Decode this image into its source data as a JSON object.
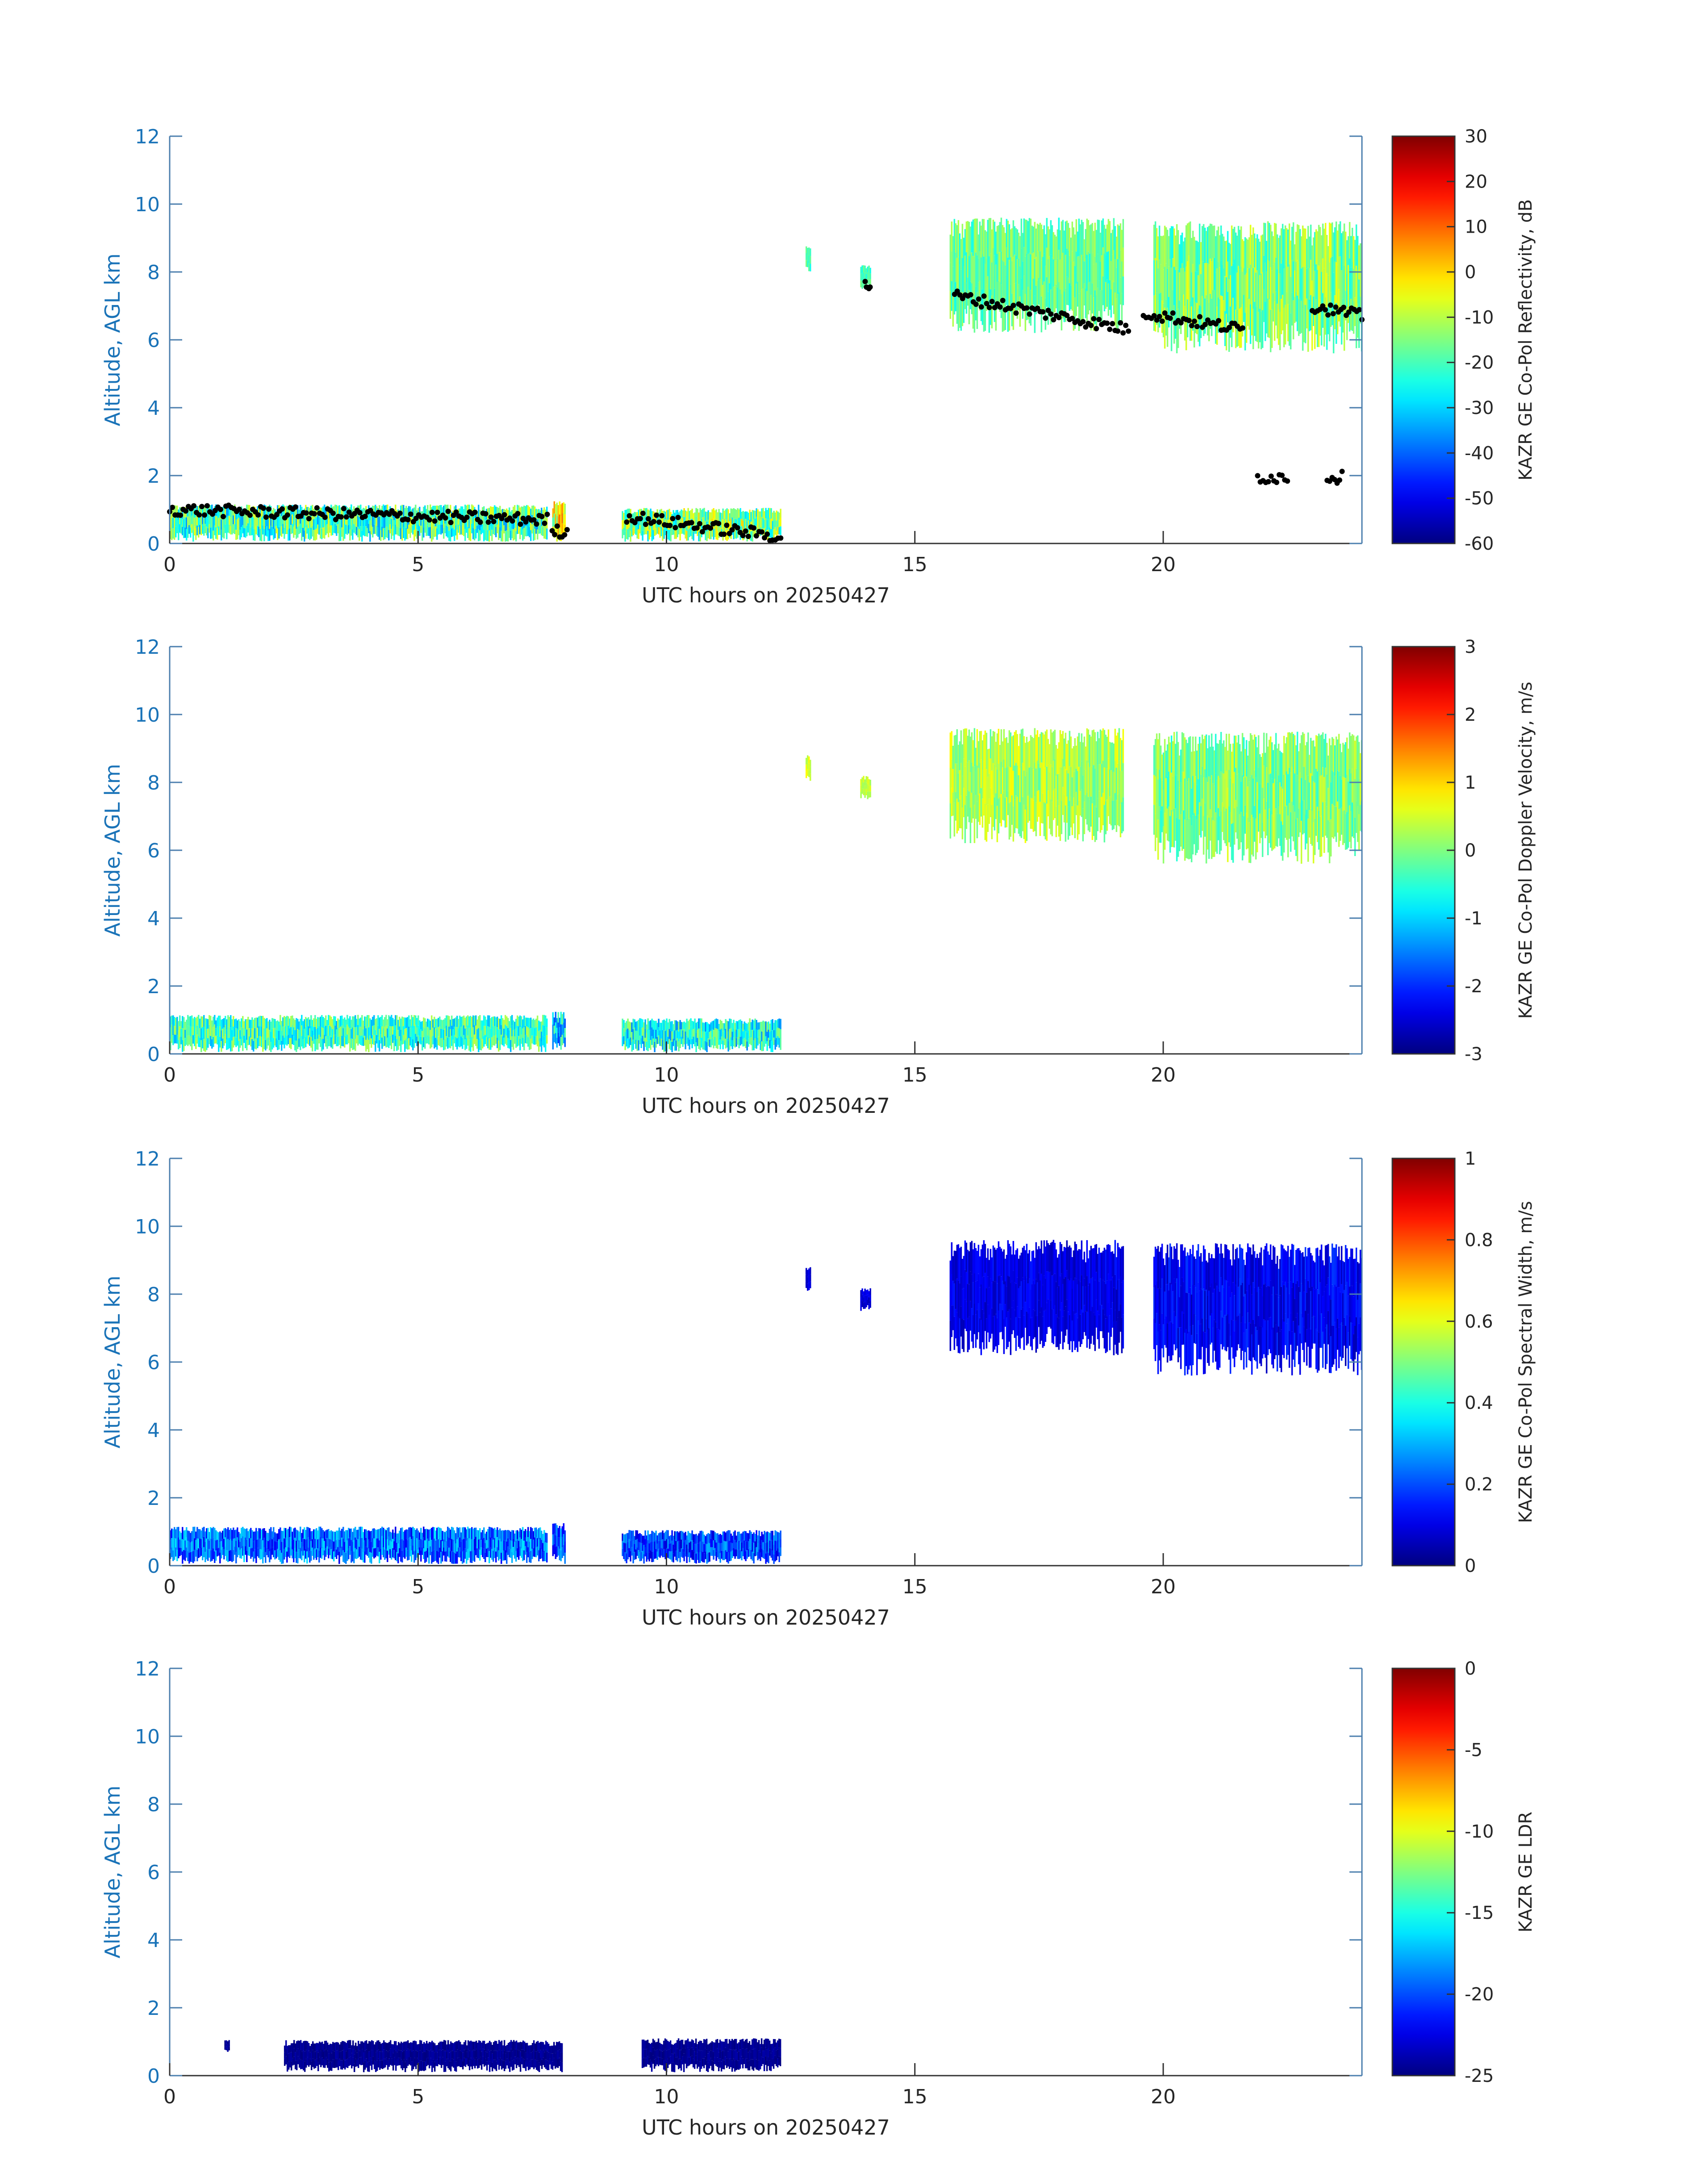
{
  "figure": {
    "date": "20250427"
  },
  "chart_data": [
    {
      "type": "heatmap",
      "xlabel": "UTC hours on 20250427",
      "ylabel": "Altitude, AGL km",
      "xlim": [
        0,
        24
      ],
      "ylim": [
        0,
        12
      ],
      "xticks": [
        "0",
        "5",
        "10",
        "15",
        "20"
      ],
      "yticks": [
        "0",
        "2",
        "4",
        "6",
        "8",
        "10",
        "12"
      ],
      "colorbar": {
        "label": "KAZR GE Co-Pol Reflectivity, dB",
        "range": [
          -60,
          30
        ],
        "ticks": [
          "30",
          "20",
          "10",
          "0",
          "-10",
          "-20",
          "-30",
          "-40",
          "-50",
          "-60"
        ],
        "colormap": "jet"
      },
      "regions": [
        {
          "x": [
            0,
            7.6
          ],
          "base": 0.05,
          "top": 1.15,
          "value_range": [
            -35,
            -5
          ]
        },
        {
          "x": [
            7.7,
            7.95
          ],
          "base": 0.05,
          "top": 1.25,
          "value_range": [
            -20,
            10
          ]
        },
        {
          "x": [
            9.1,
            12.3
          ],
          "base": 0.05,
          "top": 1.05,
          "value_range": [
            -30,
            0
          ]
        },
        {
          "x": [
            12.8,
            12.9
          ],
          "base": 8.0,
          "top": 8.8,
          "value_range": [
            -25,
            -15
          ]
        },
        {
          "x": [
            13.9,
            14.1
          ],
          "base": 7.5,
          "top": 8.2,
          "value_range": [
            -25,
            -15
          ]
        },
        {
          "x": [
            15.7,
            19.2
          ],
          "base": 6.2,
          "top": 9.6,
          "value_range": [
            -25,
            -10
          ]
        },
        {
          "x": [
            19.8,
            24
          ],
          "base": 5.6,
          "top": 9.5,
          "value_range": [
            -25,
            -5
          ]
        }
      ],
      "cloud_base_points": [
        {
          "x": [
            0,
            7.6
          ],
          "y_start": 1.0,
          "y_end": 0.7
        },
        {
          "x": [
            7.7,
            8.0
          ],
          "y_start": 0.4,
          "y_end": 0.3
        },
        {
          "x": [
            9.2,
            12.3
          ],
          "y_start": 0.8,
          "y_end": 0.2
        },
        {
          "x": [
            14.0,
            14.1
          ],
          "y_start": 7.6,
          "y_end": 7.6
        },
        {
          "x": [
            15.8,
            19.3
          ],
          "y_start": 7.3,
          "y_end": 6.3
        },
        {
          "x": [
            19.6,
            21.6
          ],
          "y_start": 6.8,
          "y_end": 6.3
        },
        {
          "x": [
            21.9,
            22.5
          ],
          "y_start": 1.95,
          "y_end": 1.95
        },
        {
          "x": [
            23.3,
            23.6
          ],
          "y_start": 1.95,
          "y_end": 1.95
        },
        {
          "x": [
            23.0,
            24.0
          ],
          "y_start": 7.0,
          "y_end": 6.7
        }
      ]
    },
    {
      "type": "heatmap",
      "xlabel": "UTC hours on 20250427",
      "ylabel": "Altitude, AGL km",
      "xlim": [
        0,
        24
      ],
      "ylim": [
        0,
        12
      ],
      "xticks": [
        "0",
        "5",
        "10",
        "15",
        "20"
      ],
      "yticks": [
        "0",
        "2",
        "4",
        "6",
        "8",
        "10",
        "12"
      ],
      "colorbar": {
        "label": "KAZR GE Co-Pol Doppler Velocity, m/s",
        "range": [
          -3,
          3
        ],
        "ticks": [
          "3",
          "2",
          "1",
          "0",
          "-1",
          "-2",
          "-3"
        ],
        "colormap": "jet"
      },
      "regions": [
        {
          "x": [
            0,
            7.6
          ],
          "base": 0.05,
          "top": 1.15,
          "value_range": [
            -1.2,
            0.4
          ]
        },
        {
          "x": [
            7.7,
            7.95
          ],
          "base": 0.05,
          "top": 1.25,
          "value_range": [
            -2.0,
            0.0
          ]
        },
        {
          "x": [
            9.1,
            12.3
          ],
          "base": 0.05,
          "top": 1.05,
          "value_range": [
            -1.5,
            0.2
          ]
        },
        {
          "x": [
            12.8,
            12.9
          ],
          "base": 8.0,
          "top": 8.8,
          "value_range": [
            0.3,
            0.8
          ]
        },
        {
          "x": [
            13.9,
            14.1
          ],
          "base": 7.5,
          "top": 8.2,
          "value_range": [
            0.2,
            0.6
          ]
        },
        {
          "x": [
            15.7,
            19.2
          ],
          "base": 6.2,
          "top": 9.6,
          "value_range": [
            -0.3,
            0.8
          ]
        },
        {
          "x": [
            19.8,
            24
          ],
          "base": 5.6,
          "top": 9.5,
          "value_range": [
            -0.6,
            0.6
          ]
        }
      ]
    },
    {
      "type": "heatmap",
      "xlabel": "UTC hours on 20250427",
      "ylabel": "Altitude, AGL km",
      "xlim": [
        0,
        24
      ],
      "ylim": [
        0,
        12
      ],
      "xticks": [
        "0",
        "5",
        "10",
        "15",
        "20"
      ],
      "yticks": [
        "0",
        "2",
        "4",
        "6",
        "8",
        "10",
        "12"
      ],
      "colorbar": {
        "label": "KAZR GE Co-Pol Spectral Width, m/s",
        "range": [
          0,
          1
        ],
        "ticks": [
          "1",
          "0.8",
          "0.6",
          "0.4",
          "0.2",
          "0"
        ],
        "colormap": "jet"
      },
      "regions": [
        {
          "x": [
            0,
            7.6
          ],
          "base": 0.05,
          "top": 1.15,
          "value_range": [
            0.1,
            0.35
          ]
        },
        {
          "x": [
            7.7,
            7.95
          ],
          "base": 0.05,
          "top": 1.25,
          "value_range": [
            0.1,
            0.35
          ]
        },
        {
          "x": [
            9.1,
            12.3
          ],
          "base": 0.05,
          "top": 1.05,
          "value_range": [
            0.08,
            0.3
          ]
        },
        {
          "x": [
            12.8,
            12.9
          ],
          "base": 8.0,
          "top": 8.8,
          "value_range": [
            0.05,
            0.12
          ]
        },
        {
          "x": [
            13.9,
            14.1
          ],
          "base": 7.5,
          "top": 8.2,
          "value_range": [
            0.05,
            0.12
          ]
        },
        {
          "x": [
            15.7,
            19.2
          ],
          "base": 6.2,
          "top": 9.6,
          "value_range": [
            0.05,
            0.15
          ]
        },
        {
          "x": [
            19.8,
            24
          ],
          "base": 5.6,
          "top": 9.5,
          "value_range": [
            0.05,
            0.18
          ]
        }
      ]
    },
    {
      "type": "heatmap",
      "xlabel": "UTC hours on 20250427",
      "ylabel": "Altitude, AGL km",
      "xlim": [
        0,
        24
      ],
      "ylim": [
        0,
        12
      ],
      "xticks": [
        "0",
        "5",
        "10",
        "15",
        "20"
      ],
      "yticks": [
        "0",
        "2",
        "4",
        "6",
        "8",
        "10",
        "12"
      ],
      "colorbar": {
        "label": "KAZR GE LDR",
        "range": [
          -25,
          0
        ],
        "ticks": [
          "0",
          "-5",
          "-10",
          "-15",
          "-20",
          "-25"
        ],
        "colormap": "jet"
      },
      "regions": [
        {
          "x": [
            1.1,
            1.2
          ],
          "base": 0.7,
          "top": 1.05,
          "value_range": [
            -25,
            -24
          ]
        },
        {
          "x": [
            2.3,
            7.9
          ],
          "base": 0.1,
          "top": 1.05,
          "value_range": [
            -25,
            -24
          ]
        },
        {
          "x": [
            9.5,
            12.3
          ],
          "base": 0.1,
          "top": 1.1,
          "value_range": [
            -25,
            -24
          ]
        }
      ]
    }
  ]
}
